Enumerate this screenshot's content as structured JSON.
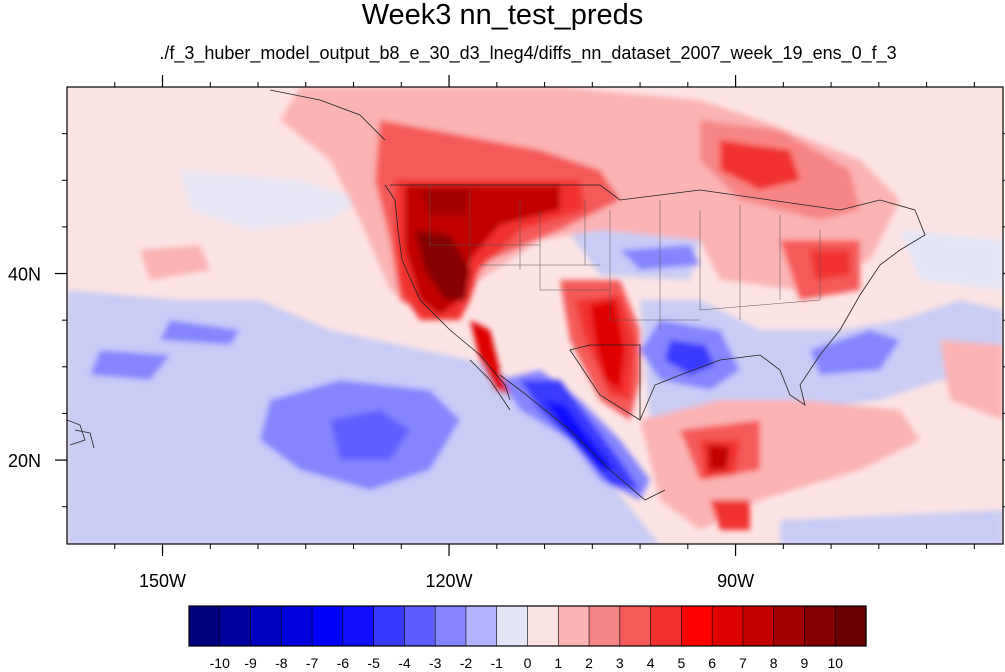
{
  "title": "Week3 nn_test_preds",
  "subtitle": "./f_3_huber_model_output_b8_e_30_d3_lneg4/diffs_nn_dataset_2007_week_19_ens_0_f_3",
  "map": {
    "lon_range": [
      -160,
      -62
    ],
    "lat_range": [
      11,
      60
    ],
    "x_ticks": [
      {
        "value": -150,
        "label": "150W"
      },
      {
        "value": -120,
        "label": "120W"
      },
      {
        "value": -90,
        "label": "90W"
      }
    ],
    "y_ticks": [
      {
        "value": 20,
        "label": "20N"
      },
      {
        "value": 40,
        "label": "40N"
      }
    ]
  },
  "colorbar": {
    "labels": [
      "-10",
      "-9",
      "-8",
      "-7",
      "-6",
      "-5",
      "-4",
      "-3",
      "-2",
      "-1",
      "0",
      "1",
      "2",
      "3",
      "4",
      "5",
      "6",
      "7",
      "8",
      "9",
      "10"
    ],
    "colors": [
      "#00007f",
      "#00009f",
      "#0000bf",
      "#0000df",
      "#0000ff",
      "#1010ff",
      "#3a3aff",
      "#5e5eff",
      "#8585ff",
      "#b3b3ff",
      "#e4e6f8",
      "#fde4e4",
      "#fbb3b3",
      "#f88585",
      "#f55a5a",
      "#f23030",
      "#ff0000",
      "#df0000",
      "#c20000",
      "#a30000",
      "#850000",
      "#6b0000"
    ]
  }
}
